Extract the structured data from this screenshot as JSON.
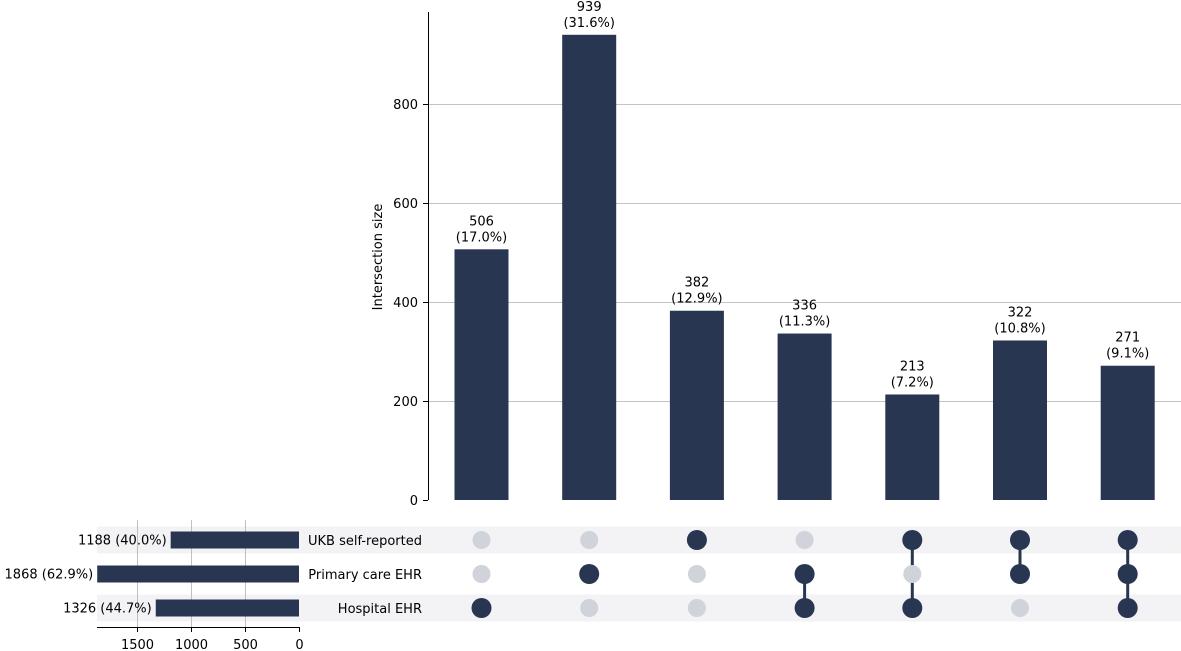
{
  "colors": {
    "bar": "#283651",
    "dot_inactive": "#d0d3da",
    "stripe": "#f3f3f5",
    "grid": "#b0b0b0"
  },
  "chart_data": {
    "type": "upset",
    "ylabel": "Intersection size",
    "ylim": [
      0,
      985
    ],
    "yticks": [
      0,
      200,
      400,
      600,
      800
    ],
    "grid": true,
    "sets": [
      {
        "name": "UKB self-reported",
        "size": 1188,
        "label": "1188 (40.0%)"
      },
      {
        "name": "Primary care EHR",
        "size": 1868,
        "label": "1868 (62.9%)"
      },
      {
        "name": "Hospital EHR",
        "size": 1326,
        "label": "1326 (44.7%)"
      }
    ],
    "set_size_xlim": [
      1870,
      0
    ],
    "set_size_ticks": [
      1500,
      1000,
      500,
      0
    ],
    "intersections": [
      {
        "members": [
          2
        ],
        "value": 506,
        "count_label": "506",
        "pct_label": "(17.0%)"
      },
      {
        "members": [
          1
        ],
        "value": 939,
        "count_label": "939",
        "pct_label": "(31.6%)"
      },
      {
        "members": [
          0
        ],
        "value": 382,
        "count_label": "382",
        "pct_label": "(12.9%)"
      },
      {
        "members": [
          1,
          2
        ],
        "value": 336,
        "count_label": "336",
        "pct_label": "(11.3%)"
      },
      {
        "members": [
          0,
          2
        ],
        "value": 213,
        "count_label": "213",
        "pct_label": "(7.2%)"
      },
      {
        "members": [
          0,
          1
        ],
        "value": 322,
        "count_label": "322",
        "pct_label": "(10.8%)"
      },
      {
        "members": [
          0,
          1,
          2
        ],
        "value": 271,
        "count_label": "271",
        "pct_label": "(9.1%)"
      }
    ]
  }
}
